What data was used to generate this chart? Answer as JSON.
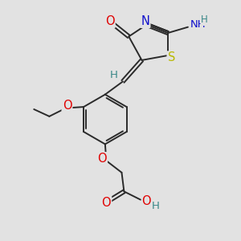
{
  "bg_color": "#e2e2e2",
  "bond_color": "#2a2a2a",
  "bond_width": 1.4,
  "atom_colors": {
    "O": "#e00000",
    "N": "#1010cc",
    "S": "#b8b800",
    "H": "#3a8888",
    "C": "#2a2a2a"
  },
  "font_size": 9.5,
  "fig_size": [
    3.0,
    3.0
  ],
  "dpi": 100
}
